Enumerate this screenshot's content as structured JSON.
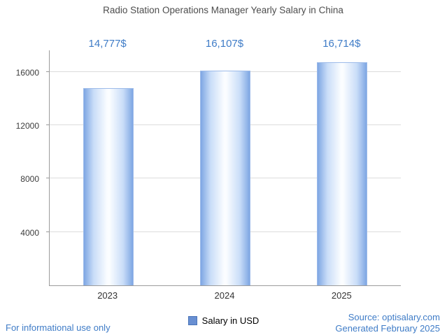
{
  "title": "Radio Station Operations Manager Yearly Salary in China",
  "legend": {
    "label": "Salary in USD"
  },
  "footer": {
    "left": "For informational use only",
    "source": "Source: optisalary.com",
    "generated": "Generated February 2025"
  },
  "chart_data": {
    "type": "bar",
    "title": "Radio Station Operations Manager Yearly Salary in China",
    "categories": [
      "2023",
      "2024",
      "2025"
    ],
    "values": [
      14777,
      16107,
      16714
    ],
    "value_labels": [
      "14,777$",
      "16,107$",
      "16,714$"
    ],
    "series_name": "Salary in USD",
    "xlabel": "",
    "ylabel": "",
    "ylim": [
      0,
      17600
    ],
    "yticks": [
      4000,
      8000,
      12000,
      16000
    ],
    "grid": true,
    "legend_position": "bottom",
    "colors": {
      "bar_edge": "#7ea6e3",
      "bar_mid": "#c9ddf8",
      "bar_center": "#fbfdff",
      "bar_border": "#9dbbe9",
      "value_label": "#3f7cc7",
      "legend_swatch": "#688fd2",
      "axis": "#9b9b9b",
      "grid": "#dcdcdc",
      "footer_text": "#3f7cc7",
      "title_text": "#4d4d4d"
    }
  }
}
